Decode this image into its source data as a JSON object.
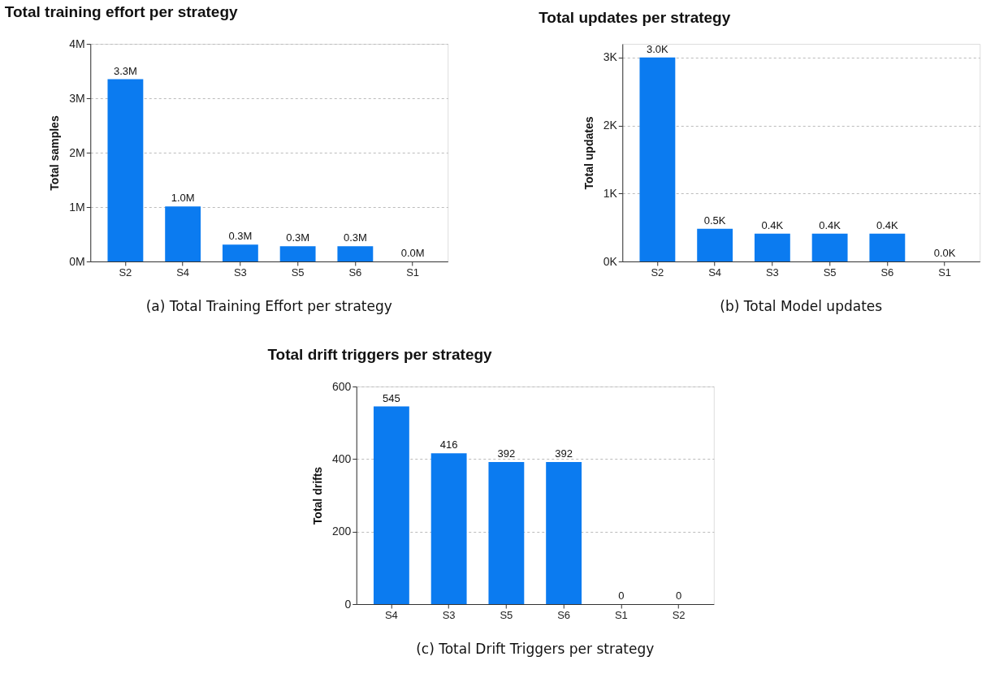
{
  "chart_data": [
    {
      "type": "bar",
      "title": "Total training effort per strategy",
      "ylabel": "Total samples",
      "categories": [
        "S2",
        "S4",
        "S3",
        "S5",
        "S6",
        "S1"
      ],
      "color": "#0b7bf0",
      "values": [
        3.35,
        1.01,
        0.31,
        0.28,
        0.28,
        0
      ],
      "value_labels": [
        "3.3M",
        "1.0M",
        "0.3M",
        "0.3M",
        "0.3M",
        "0.0M"
      ],
      "ylim": [
        0,
        4
      ],
      "yticks": [
        {
          "value": 0,
          "label": "0M"
        },
        {
          "value": 1,
          "label": "1M"
        },
        {
          "value": 2,
          "label": "2M"
        },
        {
          "value": 3,
          "label": "3M"
        },
        {
          "value": 4,
          "label": "4M"
        }
      ],
      "grid": "y",
      "annotations": [
        "(a) Total Training Effort per strategy"
      ]
    },
    {
      "type": "bar",
      "title": "Total updates per strategy",
      "ylabel": "Total updates",
      "categories": [
        "S2",
        "S4",
        "S3",
        "S5",
        "S6",
        "S1"
      ],
      "color": "#0b7bf0",
      "values": [
        3.0,
        0.48,
        0.41,
        0.41,
        0.41,
        0
      ],
      "value_labels": [
        "3.0K",
        "0.5K",
        "0.4K",
        "0.4K",
        "0.4K",
        "0.0K"
      ],
      "ylim": [
        0,
        3.2
      ],
      "yticks": [
        {
          "value": 0,
          "label": "0K"
        },
        {
          "value": 1,
          "label": "1K"
        },
        {
          "value": 2,
          "label": "2K"
        },
        {
          "value": 3,
          "label": "3K"
        }
      ],
      "grid": "y",
      "annotations": [
        "(b) Total Model updates"
      ]
    },
    {
      "type": "bar",
      "title": "Total drift triggers per strategy",
      "ylabel": "Total drifts",
      "categories": [
        "S4",
        "S3",
        "S5",
        "S6",
        "S1",
        "S2"
      ],
      "color": "#0b7bf0",
      "values": [
        545,
        416,
        392,
        392,
        0,
        0
      ],
      "data_labels": true,
      "ylim": [
        0,
        600
      ],
      "yticks": [
        0,
        200,
        400,
        600
      ],
      "grid": "y",
      "annotations": [
        "(c) Total Drift Triggers per strategy"
      ]
    }
  ]
}
